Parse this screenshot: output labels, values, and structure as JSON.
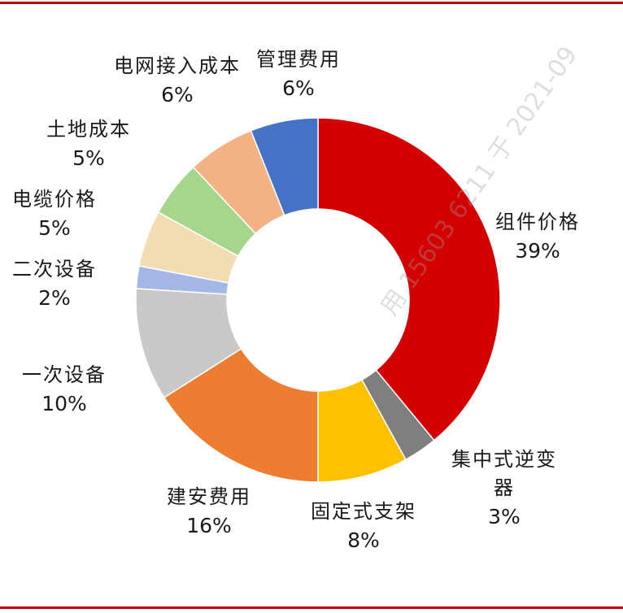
{
  "chart_data": {
    "type": "donut",
    "slices": [
      {
        "name": "组件价格",
        "pct_label": "39%",
        "value": 39,
        "color": "#d40000"
      },
      {
        "name": "集中式逆变器",
        "pct_label": "3%",
        "value": 3,
        "color": "#7f7f7f"
      },
      {
        "name": "固定式支架",
        "pct_label": "8%",
        "value": 8,
        "color": "#ffc000"
      },
      {
        "name": "建安费用",
        "pct_label": "16%",
        "value": 16,
        "color": "#ed7d31"
      },
      {
        "name": "一次设备",
        "pct_label": "10%",
        "value": 10,
        "color": "#c9c9c9"
      },
      {
        "name": "二次设备",
        "pct_label": "2%",
        "value": 2,
        "color": "#a4b8e8"
      },
      {
        "name": "电缆价格",
        "pct_label": "5%",
        "value": 5,
        "color": "#f1dcb4"
      },
      {
        "name": "土地成本",
        "pct_label": "5%",
        "value": 5,
        "color": "#a6d58c"
      },
      {
        "name": "电网接入成本",
        "pct_label": "6%",
        "value": 6,
        "color": "#f4b183"
      },
      {
        "name": "管理费用",
        "pct_label": "6%",
        "value": 6,
        "color": "#4472c4"
      }
    ]
  },
  "watermark": "用 15603 6211 于 2021-09"
}
